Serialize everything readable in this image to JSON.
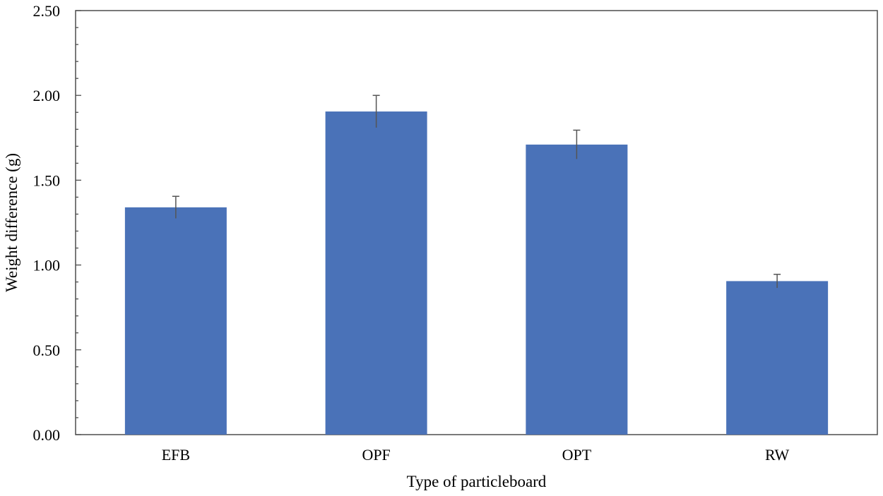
{
  "chart_data": {
    "type": "bar",
    "categories": [
      "EFB",
      "OPF",
      "OPT",
      "RW"
    ],
    "series": [
      {
        "values": [
          1.34,
          1.905,
          1.71,
          0.905
        ],
        "errors": [
          0.065,
          0.095,
          0.085,
          0.04
        ]
      }
    ],
    "title": "",
    "xlabel": "Type of particleboard",
    "ylabel": "Weight difference (g)",
    "ylim": [
      0,
      2.5
    ],
    "yticks": [
      "0.00",
      "0.50",
      "1.00",
      "1.50",
      "2.00",
      "2.50"
    ],
    "grid": false,
    "legend": "none",
    "bar_color": "#4a72b8",
    "error_bar_color": "#555555"
  }
}
